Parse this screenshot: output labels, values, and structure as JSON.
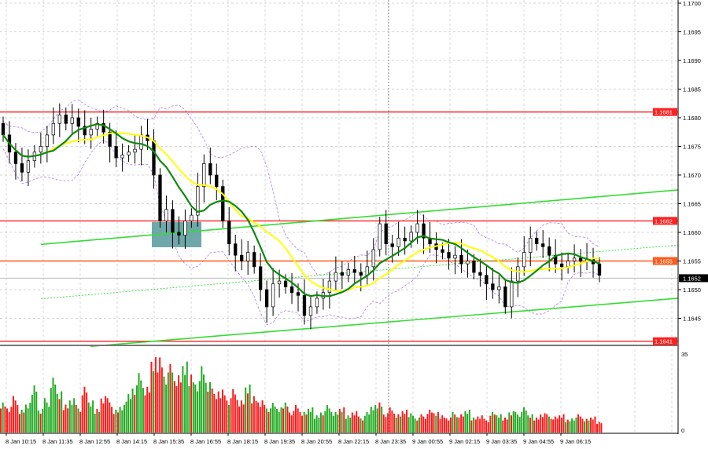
{
  "chart_data": {
    "type": "candlestick",
    "symbol_timeframe": "M5",
    "y_ticks": [
      "1.1700",
      "1.1695",
      "1.1690",
      "1.1685",
      "1.1680",
      "1.1675",
      "1.1670",
      "1.1665",
      "1.1660",
      "1.1655",
      "1.1650",
      "1.1645"
    ],
    "ylim": [
      1.16405,
      1.17
    ],
    "x_ticks": [
      "8 Jan 10:15",
      "8 Jan 11:35",
      "8 Jan 12:55",
      "8 Jan 14:15",
      "8 Jan 15:35",
      "8 Jan 16:55",
      "8 Jan 18:15",
      "8 Jan 19:35",
      "8 Jan 20:55",
      "8 Jan 22:15",
      "8 Jan 23:35",
      "9 Jan 00:55",
      "9 Jan 02:15",
      "9 Jan 03:35",
      "9 Jan 04:55",
      "9 Jan 06:15"
    ],
    "first_open": 1.1679,
    "closes": [
      1.1677,
      1.1674,
      1.1672,
      1.16705,
      1.16725,
      1.1674,
      1.1675,
      1.1677,
      1.1679,
      1.16805,
      1.1679,
      1.168,
      1.16785,
      1.1677,
      1.1678,
      1.1679,
      1.16775,
      1.1675,
      1.1673,
      1.16735,
      1.1674,
      1.16745,
      1.1677,
      1.1676,
      1.167,
      1.1662,
      1.1664,
      1.166,
      1.16595,
      1.1662,
      1.1663,
      1.1668,
      1.1672,
      1.167,
      1.1668,
      1.1662,
      1.1658,
      1.1656,
      1.1655,
      1.16565,
      1.1654,
      1.165,
      1.1647,
      1.1651,
      1.16515,
      1.16505,
      1.16495,
      1.1649,
      1.16455,
      1.1647,
      1.16485,
      1.16495,
      1.16515,
      1.1653,
      1.16525,
      1.16535,
      1.1653,
      1.16525,
      1.1654,
      1.1657,
      1.16615,
      1.1658,
      1.16575,
      1.1659,
      1.16585,
      1.166,
      1.16615,
      1.1659,
      1.1658,
      1.1657,
      1.16565,
      1.16555,
      1.1656,
      1.16545,
      1.1655,
      1.1653,
      1.16525,
      1.1651,
      1.165,
      1.16505,
      1.1647,
      1.16515,
      1.1654,
      1.16565,
      1.1659,
      1.1658,
      1.16575,
      1.1656,
      1.16545,
      1.1654,
      1.1655,
      1.16555,
      1.1655,
      1.16553,
      1.16545,
      1.16525
    ],
    "volume_axis": {
      "max_label": "35",
      "min_label": "0",
      "max": 35
    },
    "volumes": [
      14,
      12,
      16,
      10,
      13,
      22,
      11,
      15,
      24,
      18,
      13,
      16,
      12,
      20,
      14,
      11,
      17,
      15,
      10,
      12,
      18,
      22,
      26,
      20,
      33,
      35,
      28,
      30,
      25,
      31,
      27,
      24,
      29,
      22,
      18,
      20,
      16,
      19,
      14,
      21,
      17,
      15,
      12,
      13,
      11,
      14,
      10,
      12,
      9,
      11,
      8,
      10,
      12,
      9,
      11,
      8,
      10,
      7,
      9,
      12,
      14,
      9,
      11,
      8,
      10,
      9,
      7,
      8,
      10,
      9,
      8,
      7,
      9,
      8,
      10,
      7,
      8,
      6,
      9,
      8,
      7,
      10,
      9,
      11,
      8,
      7,
      9,
      8,
      7,
      8,
      6,
      7,
      8,
      6,
      7,
      5
    ],
    "levels": [
      {
        "price": 1.1681,
        "label": "1.1681",
        "color": "#ff2020"
      },
      {
        "price": 1.1662,
        "label": "1.1662",
        "color": "#ff2020"
      },
      {
        "price": 1.1655,
        "label": "1.1655",
        "color": "#ff5a1a"
      },
      {
        "price": 1.1641,
        "label": "1.1641",
        "color": "#ff2020"
      }
    ],
    "current_price": {
      "price": 1.1652,
      "label": "1.1652",
      "color": "#000000"
    },
    "trendlines": [
      {
        "name": "channel-upper",
        "from_price": 1.16579,
        "to_price": 1.16674,
        "style": "solid",
        "color": "#33dd33"
      },
      {
        "name": "channel-lower",
        "from_price": 1.16401,
        "to_price": 1.16485,
        "style": "solid",
        "color": "#33dd33"
      },
      {
        "name": "channel-mid",
        "from_price": 1.16484,
        "to_price": 1.16578,
        "style": "dotted",
        "color": "#33dd33"
      }
    ],
    "zone": {
      "top": 1.16618,
      "bottom": 1.16574,
      "color": "#5f9ea0"
    },
    "indicators": [
      {
        "name": "fast-ma",
        "period": 8,
        "color": "#118811"
      },
      {
        "name": "slow-ma",
        "period": 14,
        "color": "#ffff00"
      },
      {
        "name": "bollinger",
        "period": 10,
        "color": "#b080e0"
      }
    ],
    "colors": {
      "bull": "#ffffff",
      "bear": "#000000",
      "vol_up": "#22aa22",
      "vol_down": "#ff1a1a",
      "grid": "#c8c8c8"
    }
  }
}
